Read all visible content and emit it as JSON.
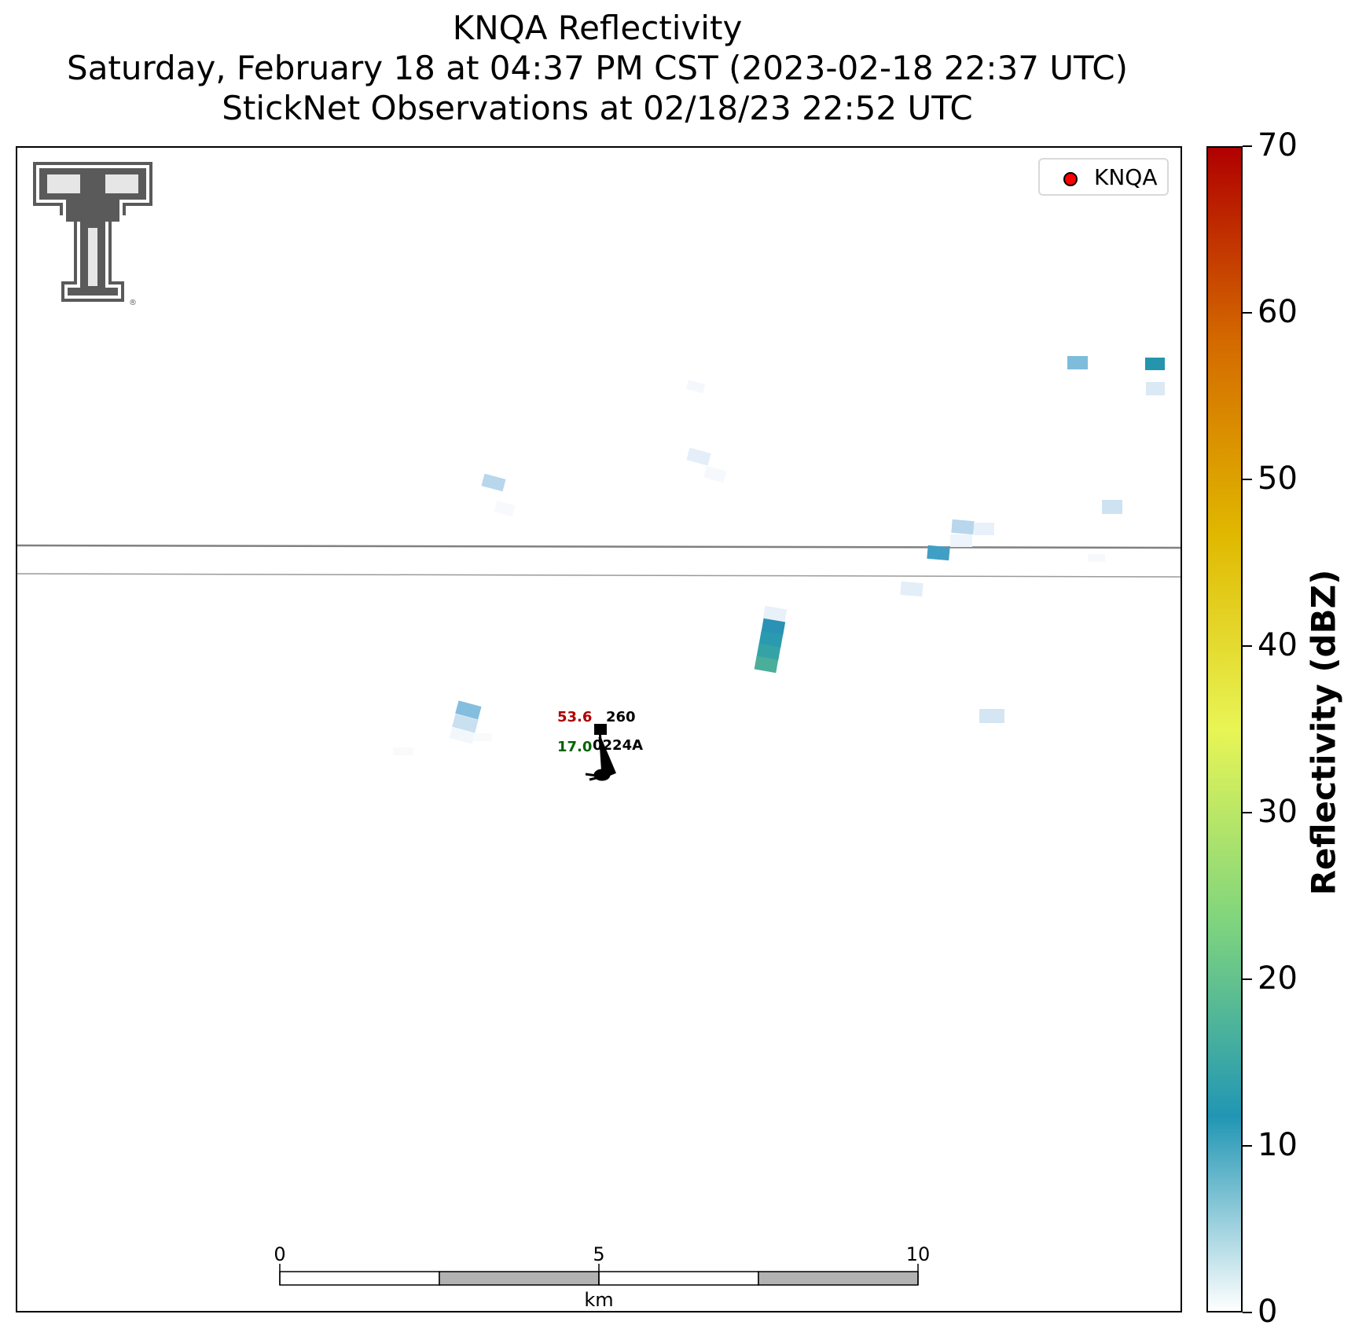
{
  "title": {
    "line1": "KNQA Reflectivity",
    "line2": "Saturday, February 18 at 04:37 PM CST (2023-02-18 22:37 UTC)",
    "line3": "StickNet Observations at 02/18/23 22:52 UTC"
  },
  "legend": {
    "label": "KNQA",
    "marker_color": "#ff0000"
  },
  "logo": {
    "name": "Texas Tech Double T"
  },
  "station": {
    "id": "0224A",
    "temperature": "53.6",
    "dewpoint": "17.0",
    "pressure": "260",
    "temperature_color": "#b00000",
    "dewpoint_color": "#006400"
  },
  "scale_bar": {
    "labels": [
      "0",
      "5",
      "10"
    ],
    "unit": "km"
  },
  "colorbar": {
    "title": "Reflectivity (dBZ)",
    "ticks": [
      "0",
      "10",
      "20",
      "30",
      "40",
      "50",
      "60",
      "70"
    ],
    "range": [
      0,
      70
    ],
    "colors": [
      "#ffffff",
      "#2196b4",
      "#7ed47e",
      "#e8f555",
      "#e0b800",
      "#d46a00",
      "#b00000"
    ]
  }
}
